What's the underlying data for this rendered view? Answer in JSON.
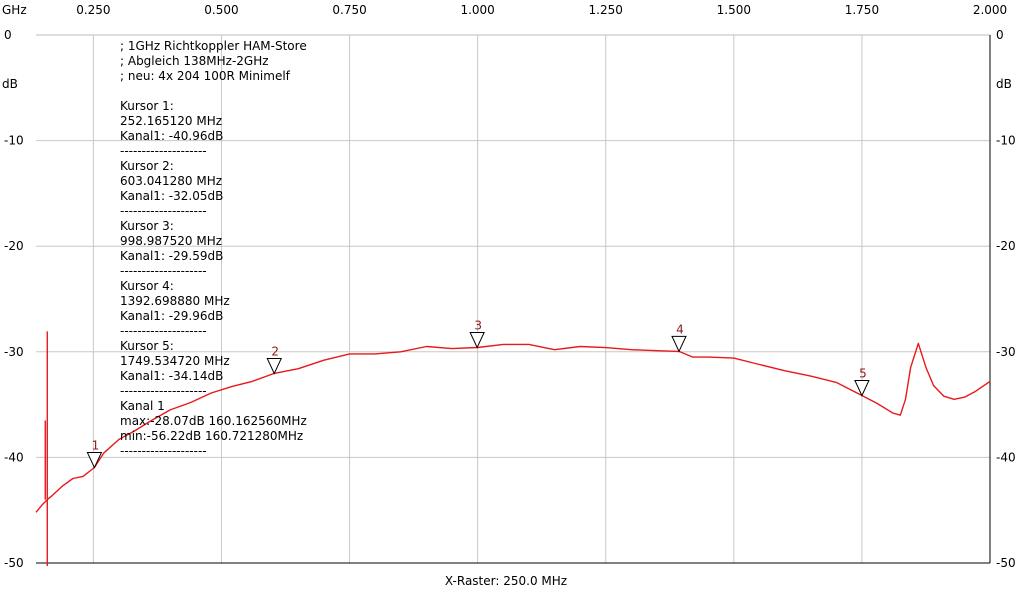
{
  "chart_data": {
    "type": "line",
    "x_unit_label": "GHz",
    "y_unit_label": "dB",
    "xlim": [
      0.138,
      2.0
    ],
    "ylim": [
      -50,
      0
    ],
    "x_ticks": [
      0.25,
      0.5,
      0.75,
      1.0,
      1.25,
      1.5,
      1.75,
      2.0
    ],
    "x_tick_labels": [
      "0.250",
      "0.500",
      "0.750",
      "1.000",
      "1.250",
      "1.500",
      "1.750",
      "2.000"
    ],
    "y_ticks": [
      0,
      -10,
      -20,
      -30,
      -40,
      -50
    ],
    "y_tick_labels": [
      "0",
      "-10",
      "-20",
      "-30",
      "-40",
      "-50"
    ],
    "grid": true,
    "xlabel": "X-Raster: 250.0 MHz",
    "annotation_lines": [
      "; 1GHz Richtkoppler HAM-Store",
      "; Abgleich 138MHz-2GHz",
      "; neu: 4x 204 100R Minimelf",
      "",
      "Kursor 1:",
      "252.165120 MHz",
      "Kanal1: -40.96dB",
      "--------------------",
      "Kursor 2:",
      "603.041280 MHz",
      "Kanal1: -32.05dB",
      "--------------------",
      "Kursor 3:",
      "998.987520 MHz",
      "Kanal1: -29.59dB",
      "--------------------",
      "Kursor 4:",
      "1392.698880 MHz",
      "Kanal1: -29.96dB",
      "--------------------",
      "Kursor 5:",
      "1749.534720 MHz",
      "Kanal1: -34.14dB",
      "--------------------",
      "Kanal 1",
      "max:-28.07dB 160.162560MHz",
      "min:-56.22dB 160.721280MHz",
      "--------------------"
    ],
    "markers": [
      {
        "label": "1",
        "x": 0.252,
        "y": -40.96
      },
      {
        "label": "2",
        "x": 0.603,
        "y": -32.05
      },
      {
        "label": "3",
        "x": 0.999,
        "y": -29.59
      },
      {
        "label": "4",
        "x": 1.393,
        "y": -29.96
      },
      {
        "label": "5",
        "x": 1.75,
        "y": -34.14
      }
    ],
    "series": [
      {
        "color": "#e8181c",
        "x": [
          0.138,
          0.15,
          0.16,
          0.17,
          0.19,
          0.21,
          0.23,
          0.252,
          0.27,
          0.3,
          0.33,
          0.36,
          0.4,
          0.44,
          0.48,
          0.52,
          0.56,
          0.603,
          0.65,
          0.7,
          0.75,
          0.8,
          0.85,
          0.9,
          0.95,
          1.0,
          1.05,
          1.1,
          1.15,
          1.2,
          1.25,
          1.3,
          1.35,
          1.393,
          1.42,
          1.45,
          1.5,
          1.55,
          1.6,
          1.65,
          1.7,
          1.75,
          1.78,
          1.81,
          1.825,
          1.835,
          1.845,
          1.86,
          1.875,
          1.89,
          1.91,
          1.93,
          1.95,
          1.97,
          2.0
        ],
        "y": [
          -45.2,
          -44.5,
          -44.0,
          -43.6,
          -42.7,
          -42.0,
          -41.8,
          -40.96,
          -39.6,
          -38.3,
          -37.5,
          -36.6,
          -35.5,
          -34.8,
          -33.9,
          -33.3,
          -32.8,
          -32.05,
          -31.6,
          -30.8,
          -30.2,
          -30.2,
          -30.0,
          -29.5,
          -29.7,
          -29.59,
          -29.3,
          -29.3,
          -29.8,
          -29.5,
          -29.6,
          -29.8,
          -29.9,
          -29.96,
          -30.5,
          -30.5,
          -30.6,
          -31.2,
          -31.8,
          -32.3,
          -32.9,
          -34.14,
          -34.9,
          -35.8,
          -36.0,
          -34.5,
          -31.5,
          -29.2,
          -31.5,
          -33.2,
          -34.2,
          -34.5,
          -34.3,
          -33.8,
          -32.8
        ]
      }
    ],
    "glitch": {
      "x": 0.16,
      "y_max": -28.07,
      "y_min": -56.22,
      "y_secondary": -36.5
    }
  }
}
